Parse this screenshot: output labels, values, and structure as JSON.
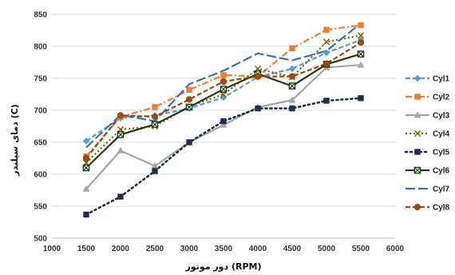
{
  "chart_data": {
    "type": "line",
    "xlabel": "دور موتور (RPM)",
    "ylabel": "دمای سیلندر (C)",
    "xlim": [
      1000,
      6000
    ],
    "ylim": [
      500,
      850
    ],
    "xticks": [
      1000,
      1500,
      2000,
      2500,
      3000,
      3500,
      4000,
      4500,
      5000,
      5500,
      6000
    ],
    "yticks": [
      500,
      550,
      600,
      650,
      700,
      750,
      800,
      850
    ],
    "grid": "horizontal",
    "legend_position": "right",
    "x": [
      1500,
      2000,
      2500,
      3000,
      3500,
      4000,
      4500,
      5000,
      5500
    ],
    "series": [
      {
        "name": "Cyl1",
        "color": "#5b9bd5",
        "dash": "6,3",
        "marker": "diamond",
        "values": [
          652,
          688,
          692,
          703,
          720,
          752,
          765,
          790,
          810
        ]
      },
      {
        "name": "Cyl2",
        "color": "#ed7d31",
        "dash": "8,3,2,3",
        "marker": "square",
        "values": [
          628,
          690,
          705,
          732,
          755,
          753,
          797,
          826,
          833
        ]
      },
      {
        "name": "Cyl3",
        "color": "#a5a5a5",
        "dash": "",
        "marker": "triangle",
        "values": [
          577,
          637,
          613,
          650,
          677,
          705,
          716,
          767,
          771
        ]
      },
      {
        "name": "Cyl4",
        "color": "#7f6000",
        "dash": "2,3",
        "marker": "x",
        "values": [
          618,
          670,
          675,
          706,
          725,
          765,
          752,
          807,
          817
        ]
      },
      {
        "name": "Cyl5",
        "color": "#1f2d4e",
        "dash": "2,4",
        "marker": "square",
        "values": [
          537,
          565,
          605,
          650,
          683,
          703,
          703,
          715,
          719
        ]
      },
      {
        "name": "Cyl6",
        "color": "#1e3d14",
        "dash": "",
        "marker": "xbox",
        "values": [
          610,
          662,
          678,
          705,
          733,
          757,
          738,
          772,
          788
        ]
      },
      {
        "name": "Cyl7",
        "color": "#2e75b6",
        "dash": "12,4",
        "marker": "none",
        "values": [
          642,
          693,
          683,
          741,
          762,
          789,
          778,
          793,
          836
        ]
      },
      {
        "name": "Cyl8",
        "color": "#9e480e",
        "dash": "6,3",
        "marker": "circle",
        "values": [
          625,
          692,
          690,
          717,
          745,
          753,
          753,
          773,
          806
        ]
      }
    ]
  }
}
